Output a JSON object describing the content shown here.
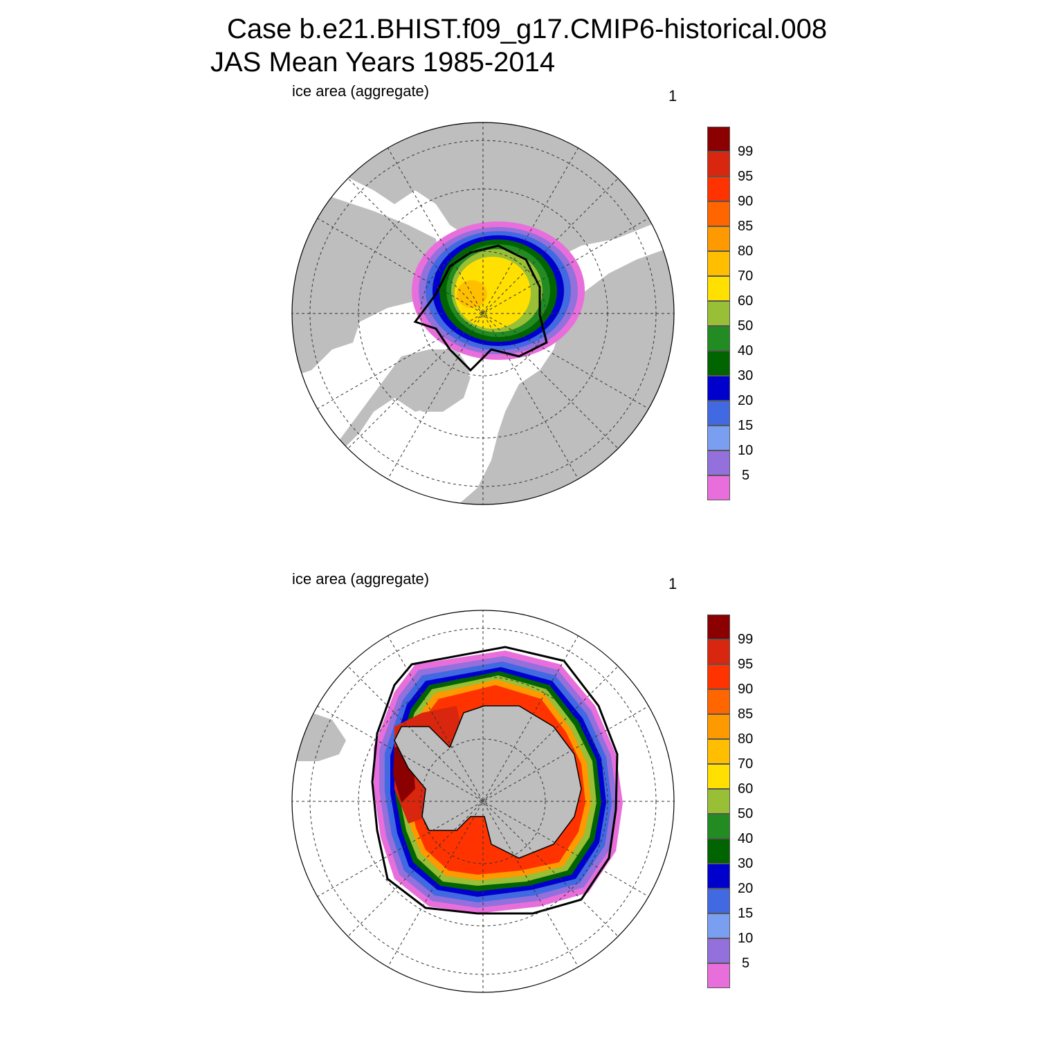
{
  "header": {
    "title_line1": "Case b.e21.BHIST.f09_g17.CMIP6-historical.008",
    "title_line2": "JAS Mean   Years 1985-2014"
  },
  "panels": [
    {
      "id": "nh",
      "hemisphere": "north",
      "left_label": "ice area  (aggregate)",
      "right_label": "1"
    },
    {
      "id": "sh",
      "hemisphere": "south",
      "left_label": "ice area  (aggregate)",
      "right_label": "1"
    }
  ],
  "colorbar": {
    "labels": [
      "99",
      "95",
      "90",
      "85",
      "80",
      "70",
      "60",
      "50",
      "40",
      "30",
      "20",
      "15",
      "10",
      "5"
    ],
    "colors": [
      "#8b0000",
      "#d9260e",
      "#ff3300",
      "#ff6600",
      "#ff9900",
      "#ffbf00",
      "#ffe000",
      "#98bf35",
      "#228b22",
      "#006400",
      "#0000cd",
      "#4169e1",
      "#7b9ff0",
      "#9370db",
      "#e86fdb"
    ]
  },
  "colors": {
    "land": "#bebebe",
    "ocean": "#ffffff",
    "grid": "#333333",
    "coast": "#000000"
  }
}
